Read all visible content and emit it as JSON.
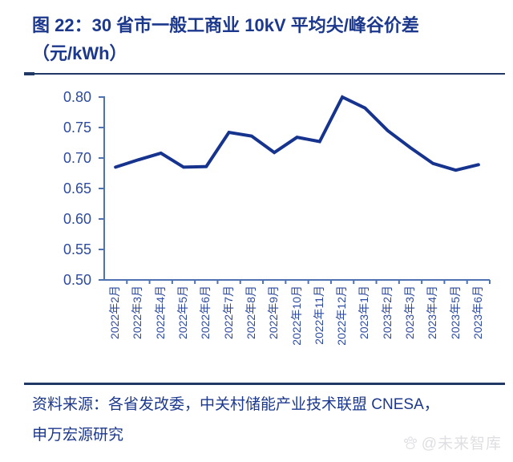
{
  "figure": {
    "title_line1": "图 22：30 省市一般工商业 10kV 平均尖/峰谷价差",
    "title_line2": "（元/kWh）",
    "source_line1": "资料来源：各省发改委，中关村储能产业技术联盟 CNESA，",
    "source_line2": "申万宏源研究",
    "watermark_text": "@未来智库"
  },
  "colors": {
    "title": "#1C388C",
    "rule": "#1F3864",
    "axis": "#4F72B2",
    "tick_label": "#2E4A9E",
    "line": "#16338E",
    "watermark": "#DFDFE3"
  },
  "chart_data": {
    "type": "line",
    "title": "图 22：30 省市一般工商业 10kV 平均尖/峰谷价差（元/kWh）",
    "x": [
      "2022年2月",
      "2022年3月",
      "2022年4月",
      "2022年5月",
      "2022年6月",
      "2022年7月",
      "2022年8月",
      "2022年9月",
      "2022年10月",
      "2022年11月",
      "2022年12月",
      "2023年1月",
      "2023年2月",
      "2023年3月",
      "2023年4月",
      "2023年5月",
      "2023年6月"
    ],
    "values": [
      0.685,
      0.697,
      0.708,
      0.685,
      0.686,
      0.742,
      0.736,
      0.709,
      0.734,
      0.727,
      0.8,
      0.782,
      0.745,
      0.717,
      0.691,
      0.68,
      0.689
    ],
    "ylim": [
      0.5,
      0.8
    ],
    "yticks": [
      "0.80",
      "0.75",
      "0.70",
      "0.65",
      "0.60",
      "0.55",
      "0.50"
    ],
    "xlabel": "",
    "ylabel": "",
    "grid": false,
    "legend": "none",
    "line_color": "#16338E"
  }
}
